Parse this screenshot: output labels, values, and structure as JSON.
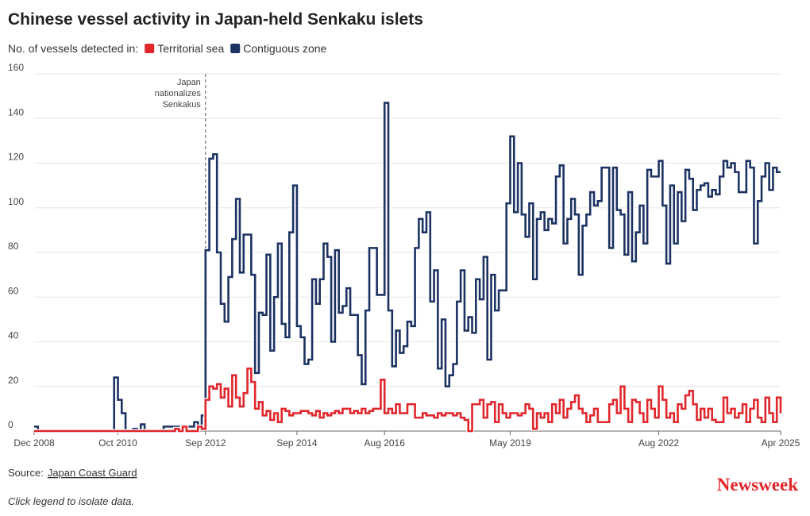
{
  "chart_data": {
    "type": "line",
    "title": "Chinese vessel activity in Japan-held Senkaku islets",
    "subtitle": "No. of vessels detected in:",
    "source_label": "Source:",
    "source": "Japan Coast Guard",
    "note": "Click legend to isolate data.",
    "logo": "Newsweek",
    "step": true,
    "grid": true,
    "legend": "top-left",
    "ylim": [
      0,
      160
    ],
    "yticks": [
      0,
      20,
      40,
      60,
      80,
      100,
      120,
      140,
      160
    ],
    "xticks": [
      {
        "value": "2008-12",
        "label": "Dec 2008"
      },
      {
        "value": "2010-10",
        "label": "Oct 2010"
      },
      {
        "value": "2012-09",
        "label": "Sep 2012"
      },
      {
        "value": "2014-09",
        "label": "Sep 2014"
      },
      {
        "value": "2016-08",
        "label": "Aug 2016"
      },
      {
        "value": "2019-05",
        "label": "May 2019"
      },
      {
        "value": "2022-08",
        "label": "Aug 2022"
      },
      {
        "value": "2025-04",
        "label": "Apr 2025"
      }
    ],
    "annotations": [
      {
        "x": "2012-09",
        "lines": [
          "Japan",
          "nationalizes",
          "Senkakus"
        ]
      }
    ],
    "x": [
      "2008-12",
      "2009-01",
      "2009-02",
      "2009-03",
      "2009-04",
      "2009-05",
      "2009-06",
      "2009-07",
      "2009-08",
      "2009-09",
      "2009-10",
      "2009-11",
      "2009-12",
      "2010-01",
      "2010-02",
      "2010-03",
      "2010-04",
      "2010-05",
      "2010-06",
      "2010-07",
      "2010-08",
      "2010-09",
      "2010-10",
      "2010-11",
      "2010-12",
      "2011-01",
      "2011-02",
      "2011-03",
      "2011-04",
      "2011-05",
      "2011-06",
      "2011-07",
      "2011-08",
      "2011-09",
      "2011-10",
      "2011-11",
      "2011-12",
      "2012-01",
      "2012-02",
      "2012-03",
      "2012-04",
      "2012-05",
      "2012-06",
      "2012-07",
      "2012-08",
      "2012-09",
      "2012-10",
      "2012-11",
      "2012-12",
      "2013-01",
      "2013-02",
      "2013-03",
      "2013-04",
      "2013-05",
      "2013-06",
      "2013-07",
      "2013-08",
      "2013-09",
      "2013-10",
      "2013-11",
      "2013-12",
      "2014-01",
      "2014-02",
      "2014-03",
      "2014-04",
      "2014-05",
      "2014-06",
      "2014-07",
      "2014-08",
      "2014-09",
      "2014-10",
      "2014-11",
      "2014-12",
      "2015-01",
      "2015-02",
      "2015-03",
      "2015-04",
      "2015-05",
      "2015-06",
      "2015-07",
      "2015-08",
      "2015-09",
      "2015-10",
      "2015-11",
      "2015-12",
      "2016-01",
      "2016-02",
      "2016-03",
      "2016-04",
      "2016-05",
      "2016-06",
      "2016-07",
      "2016-08",
      "2016-09",
      "2016-10",
      "2016-11",
      "2016-12",
      "2017-01",
      "2017-02",
      "2017-03",
      "2017-04",
      "2017-05",
      "2017-06",
      "2017-07",
      "2017-08",
      "2017-09",
      "2017-10",
      "2017-11",
      "2017-12",
      "2018-01",
      "2018-02",
      "2018-03",
      "2018-04",
      "2018-05",
      "2018-06",
      "2018-07",
      "2018-08",
      "2018-09",
      "2018-10",
      "2018-11",
      "2018-12",
      "2019-01",
      "2019-02",
      "2019-03",
      "2019-04",
      "2019-05",
      "2019-06",
      "2019-07",
      "2019-08",
      "2019-09",
      "2019-10",
      "2019-11",
      "2019-12",
      "2020-01",
      "2020-02",
      "2020-03",
      "2020-04",
      "2020-05",
      "2020-06",
      "2020-07",
      "2020-08",
      "2020-09",
      "2020-10",
      "2020-11",
      "2020-12",
      "2021-01",
      "2021-02",
      "2021-03",
      "2021-04",
      "2021-05",
      "2021-06",
      "2021-07",
      "2021-08",
      "2021-09",
      "2021-10",
      "2021-11",
      "2021-12",
      "2022-01",
      "2022-02",
      "2022-03",
      "2022-04",
      "2022-05",
      "2022-06",
      "2022-07",
      "2022-08",
      "2022-09",
      "2022-10",
      "2022-11",
      "2022-12",
      "2023-01",
      "2023-02",
      "2023-03",
      "2023-04",
      "2023-05",
      "2023-06",
      "2023-07",
      "2023-08",
      "2023-09",
      "2023-10",
      "2023-11",
      "2023-12",
      "2024-01",
      "2024-02",
      "2024-03",
      "2024-04",
      "2024-05",
      "2024-06",
      "2024-07",
      "2024-08",
      "2024-09",
      "2024-10",
      "2024-11",
      "2024-12",
      "2025-01",
      "2025-02",
      "2025-03",
      "2025-04"
    ],
    "series": [
      {
        "name": "Contiguous zone",
        "color": "#1b3262",
        "values": [
          2,
          0,
          0,
          0,
          0,
          0,
          0,
          0,
          0,
          0,
          0,
          0,
          0,
          0,
          0,
          0,
          0,
          0,
          0,
          0,
          0,
          24,
          14,
          8,
          0,
          0,
          1,
          0,
          3,
          0,
          0,
          0,
          0,
          0,
          2,
          2,
          2,
          2,
          0,
          1,
          2,
          2,
          4,
          2,
          7,
          81,
          122,
          124,
          80,
          57,
          49,
          69,
          86,
          104,
          71,
          88,
          88,
          70,
          26,
          53,
          52,
          79,
          36,
          60,
          84,
          48,
          42,
          89,
          110,
          47,
          42,
          30,
          32,
          68,
          57,
          68,
          84,
          78,
          40,
          81,
          53,
          56,
          64,
          52,
          52,
          34,
          21,
          54,
          82,
          82,
          61,
          61,
          147,
          54,
          29,
          45,
          35,
          38,
          49,
          47,
          82,
          95,
          89,
          98,
          58,
          72,
          28,
          50,
          20,
          25,
          30,
          58,
          72,
          45,
          51,
          44,
          68,
          59,
          78,
          32,
          70,
          54,
          63,
          63,
          102,
          132,
          98,
          120,
          97,
          87,
          102,
          68,
          95,
          98,
          90,
          95,
          93,
          114,
          119,
          84,
          95,
          104,
          97,
          70,
          92,
          97,
          107,
          101,
          103,
          118,
          118,
          82,
          118,
          99,
          97,
          79,
          107,
          76,
          89,
          101,
          84,
          117,
          114,
          114,
          121,
          101,
          75,
          110,
          84,
          107,
          94,
          117,
          113,
          99,
          108,
          110,
          111,
          105,
          108,
          106,
          114,
          121,
          118,
          120,
          116,
          107,
          107,
          121,
          118,
          84,
          103,
          114,
          120,
          108,
          118,
          116,
          116
        ]
      },
      {
        "name": "Territorial sea",
        "color": "#e0262b",
        "values": [
          0,
          0,
          0,
          0,
          0,
          0,
          0,
          0,
          0,
          0,
          0,
          0,
          0,
          0,
          0,
          0,
          0,
          0,
          0,
          0,
          0,
          0,
          0,
          0,
          0,
          0,
          0,
          0,
          0,
          0,
          0,
          0,
          0,
          0,
          0,
          0,
          0,
          1,
          0,
          2,
          0,
          0,
          0,
          2,
          1,
          14,
          20,
          19,
          21,
          15,
          19,
          11,
          25,
          15,
          11,
          17,
          28,
          22,
          10,
          13,
          7,
          9,
          5,
          8,
          4,
          10,
          9,
          7,
          8,
          8,
          9,
          9,
          8,
          7,
          9,
          6,
          8,
          7,
          8,
          9,
          8,
          10,
          10,
          8,
          9,
          8,
          10,
          8,
          9,
          10,
          10,
          23,
          8,
          10,
          8,
          12,
          8,
          8,
          12,
          12,
          6,
          6,
          8,
          7,
          7,
          6,
          8,
          7,
          8,
          8,
          7,
          8,
          6,
          5,
          0,
          12,
          12,
          14,
          6,
          12,
          13,
          4,
          12,
          8,
          6,
          8,
          8,
          7,
          8,
          12,
          10,
          1,
          8,
          6,
          8,
          4,
          12,
          8,
          14,
          6,
          10,
          13,
          16,
          10,
          8,
          4,
          7,
          10,
          4,
          4,
          4,
          12,
          14,
          8,
          20,
          10,
          4,
          14,
          13,
          8,
          4,
          14,
          10,
          6,
          20,
          14,
          6,
          8,
          4,
          12,
          10,
          16,
          18,
          12,
          5,
          10,
          6,
          10,
          5,
          4,
          4,
          15,
          8,
          10,
          6,
          8,
          12,
          4,
          10,
          14,
          6,
          4,
          15,
          8,
          4,
          15,
          8
        ]
      }
    ]
  }
}
